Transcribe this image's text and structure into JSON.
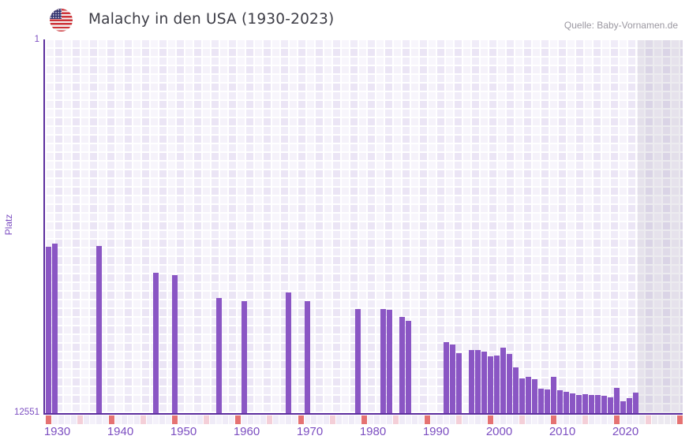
{
  "header": {
    "title": "Malachy in den USA (1930-2023)",
    "source": "Quelle: Baby-Vornamen.de",
    "flag_icon": "us-flag-icon"
  },
  "axes": {
    "y_label": "Platz",
    "y_tick_top": "1",
    "y_tick_bottom": "12551",
    "x_tick_labels": [
      "1930",
      "1940",
      "1950",
      "1960",
      "1970",
      "1980",
      "1990",
      "2000",
      "2010",
      "2020"
    ]
  },
  "colors": {
    "bar": "#8a56c4",
    "axis_line": "#5c2e9e",
    "tick_text": "#7c4ec1",
    "title_text": "#3c3c45",
    "source_text": "#9a97a0",
    "decade_marker": "#e57272",
    "half_decade_marker": "#f4cfd8",
    "strip_cell": "#efebf7",
    "strip_cell_alt": "#f4f1fa",
    "strip_cell_future": "#ece9f0"
  },
  "chart_data": {
    "type": "bar",
    "title": "Malachy in den USA (1930-2023)",
    "ylabel": "Platz",
    "y_axis": {
      "min": 1,
      "max": 12551,
      "inverted": true,
      "tick_labels": [
        "1",
        "12551"
      ]
    },
    "x_axis": {
      "start": 1930,
      "end": 2030,
      "data_end": 2023,
      "tick_interval": 10,
      "future_shading_from": 2024
    },
    "legend": false,
    "grid": "checkered-background",
    "decade_marker_years": [
      1930,
      1940,
      1950,
      1960,
      1970,
      1980,
      1990,
      2000,
      2010,
      2020,
      2030
    ],
    "half_decade_marker_years": [
      1935,
      1945,
      1955,
      1965,
      1975,
      1985,
      1995,
      2005,
      2015,
      2025
    ],
    "points": [
      {
        "year": 1930,
        "rank": 6950
      },
      {
        "year": 1931,
        "rank": 6850
      },
      {
        "year": 1938,
        "rank": 6920
      },
      {
        "year": 1947,
        "rank": 7820
      },
      {
        "year": 1950,
        "rank": 7910
      },
      {
        "year": 1957,
        "rank": 8670
      },
      {
        "year": 1961,
        "rank": 8790
      },
      {
        "year": 1968,
        "rank": 8480
      },
      {
        "year": 1971,
        "rank": 8770
      },
      {
        "year": 1979,
        "rank": 9060
      },
      {
        "year": 1983,
        "rank": 9060
      },
      {
        "year": 1984,
        "rank": 9080
      },
      {
        "year": 1986,
        "rank": 9300
      },
      {
        "year": 1987,
        "rank": 9450
      },
      {
        "year": 1993,
        "rank": 10160
      },
      {
        "year": 1994,
        "rank": 10240
      },
      {
        "year": 1995,
        "rank": 10540
      },
      {
        "year": 1997,
        "rank": 10420
      },
      {
        "year": 1998,
        "rank": 10420
      },
      {
        "year": 1999,
        "rank": 10490
      },
      {
        "year": 2000,
        "rank": 10630
      },
      {
        "year": 2001,
        "rank": 10610
      },
      {
        "year": 2002,
        "rank": 10360
      },
      {
        "year": 2003,
        "rank": 10560
      },
      {
        "year": 2004,
        "rank": 11000
      },
      {
        "year": 2005,
        "rank": 11370
      },
      {
        "year": 2006,
        "rank": 11330
      },
      {
        "year": 2007,
        "rank": 11400
      },
      {
        "year": 2008,
        "rank": 11730
      },
      {
        "year": 2009,
        "rank": 11750
      },
      {
        "year": 2010,
        "rank": 11340
      },
      {
        "year": 2011,
        "rank": 11770
      },
      {
        "year": 2012,
        "rank": 11840
      },
      {
        "year": 2013,
        "rank": 11880
      },
      {
        "year": 2014,
        "rank": 11930
      },
      {
        "year": 2015,
        "rank": 11900
      },
      {
        "year": 2016,
        "rank": 11930
      },
      {
        "year": 2017,
        "rank": 11930
      },
      {
        "year": 2018,
        "rank": 11960
      },
      {
        "year": 2019,
        "rank": 12010
      },
      {
        "year": 2020,
        "rank": 11700
      },
      {
        "year": 2021,
        "rank": 12150
      },
      {
        "year": 2022,
        "rank": 12050
      },
      {
        "year": 2023,
        "rank": 11860
      }
    ]
  }
}
